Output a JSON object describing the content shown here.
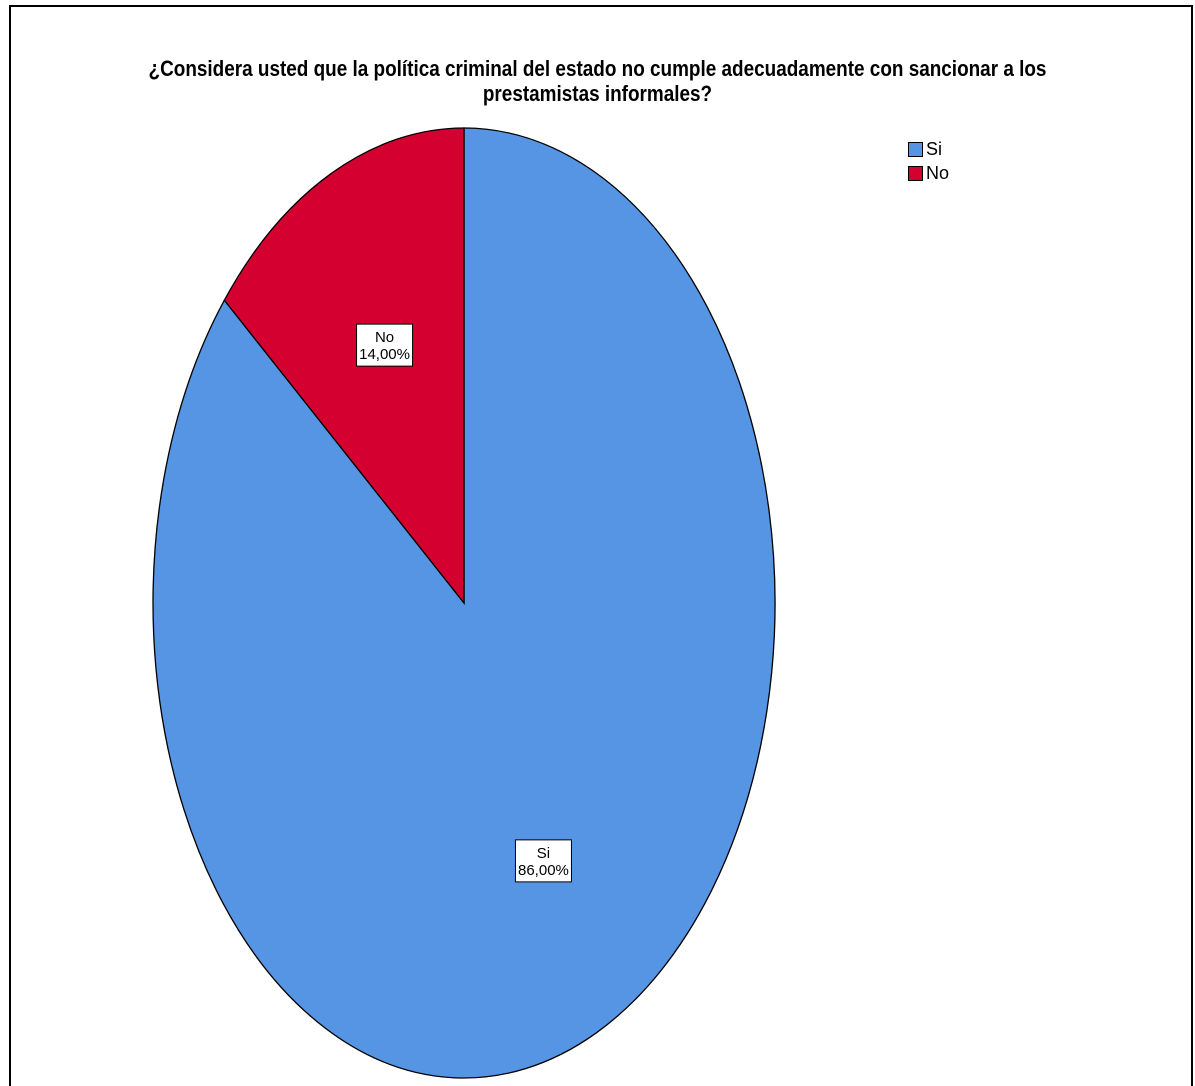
{
  "chart_data": {
    "type": "pie",
    "title_lines": [
      "¿Considera usted que la política criminal del estado no cumple adecuadamente con sancionar a los",
      "prestamistas informales?"
    ],
    "slices": [
      {
        "name": "Si",
        "value": 86.0,
        "label": "86,00%",
        "color": "#5694E4"
      },
      {
        "name": "No",
        "value": 14.0,
        "label": "14,00%",
        "color": "#D30030"
      }
    ],
    "start_angle_deg": 0,
    "direction": "clockwise",
    "legend": {
      "placement": "top-right",
      "items": [
        {
          "name": "Si",
          "color": "#5694E4"
        },
        {
          "name": "No",
          "color": "#D30030"
        }
      ]
    }
  }
}
